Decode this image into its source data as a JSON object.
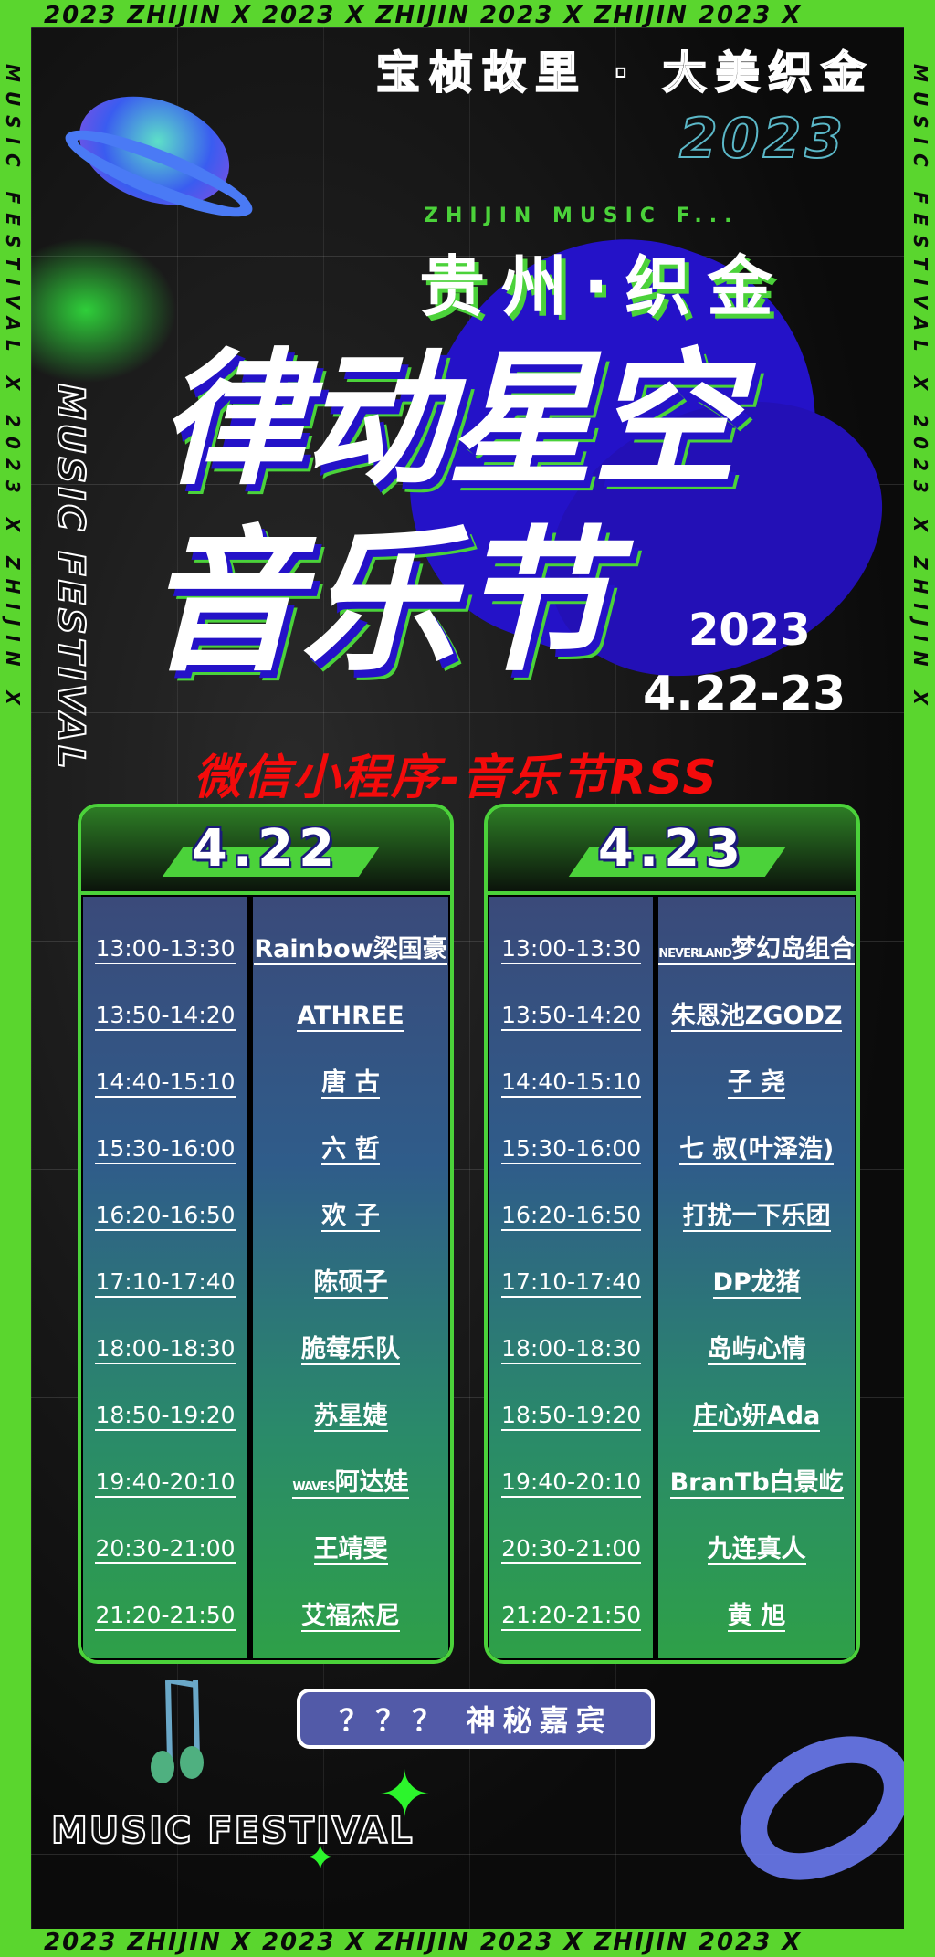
{
  "frame": {
    "top_text": "2023  ZHIJIN  X  2023  X  ZHIJIN   2023  X  ZHIJIN   2023  X",
    "bottom_text": "2023  ZHIJIN  X  2023  X  ZHIJIN   2023  X  ZHIJIN   2023  X",
    "side_text": "MUSIC FESTIVAL X 2023 X ZHIJIN X",
    "color": "#5ad62e"
  },
  "header": {
    "tagline": "宝桢故里 · 大美织金",
    "year_outline": "2023",
    "arc_text": "ZHIJIN MUSIC F...",
    "city": "贵州·织金",
    "title_line1": "律动星空",
    "title_line2": "音乐节",
    "year": "2023",
    "dates": "4.22-23",
    "vertical_text": "MUSIC FESTIVAL"
  },
  "banner": {
    "text": "微信小程序-音乐节RSS",
    "color": "#f40b0b"
  },
  "schedule": [
    {
      "day": "4.22",
      "rows": [
        {
          "time": "13:00-13:30",
          "artist": "Rainbow梁国豪"
        },
        {
          "time": "13:50-14:20",
          "artist": "ATHREE"
        },
        {
          "time": "14:40-15:10",
          "artist": "唐 古"
        },
        {
          "time": "15:30-16:00",
          "artist": "六 哲"
        },
        {
          "time": "16:20-16:50",
          "artist": "欢 子"
        },
        {
          "time": "17:10-17:40",
          "artist": "陈硕子"
        },
        {
          "time": "18:00-18:30",
          "artist": "脆莓乐队"
        },
        {
          "time": "18:50-19:20",
          "artist": "苏星婕"
        },
        {
          "time": "19:40-20:10",
          "artist": "阿达娃",
          "prefix": "WAVES"
        },
        {
          "time": "20:30-21:00",
          "artist": "王靖雯"
        },
        {
          "time": "21:20-21:50",
          "artist": "艾福杰尼"
        }
      ]
    },
    {
      "day": "4.23",
      "rows": [
        {
          "time": "13:00-13:30",
          "artist": "梦幻岛组合",
          "prefix": "NEVERLAND"
        },
        {
          "time": "13:50-14:20",
          "artist": "朱恩池ZGODZ"
        },
        {
          "time": "14:40-15:10",
          "artist": "子 尧"
        },
        {
          "time": "15:30-16:00",
          "artist": "七 叔(叶泽浩)"
        },
        {
          "time": "16:20-16:50",
          "artist": "打扰一下乐团"
        },
        {
          "time": "17:10-17:40",
          "artist": "DP龙猪"
        },
        {
          "time": "18:00-18:30",
          "artist": "岛屿心情"
        },
        {
          "time": "18:50-19:20",
          "artist": "庄心妍Ada"
        },
        {
          "time": "19:40-20:10",
          "artist": "BranTb白景屹"
        },
        {
          "time": "20:30-21:00",
          "artist": "九连真人"
        },
        {
          "time": "21:20-21:50",
          "artist": "黄 旭"
        }
      ]
    }
  ],
  "mystery_guest": "？？？ 神秘嘉宾",
  "footer_text": "MUSIC FESTIVAL"
}
